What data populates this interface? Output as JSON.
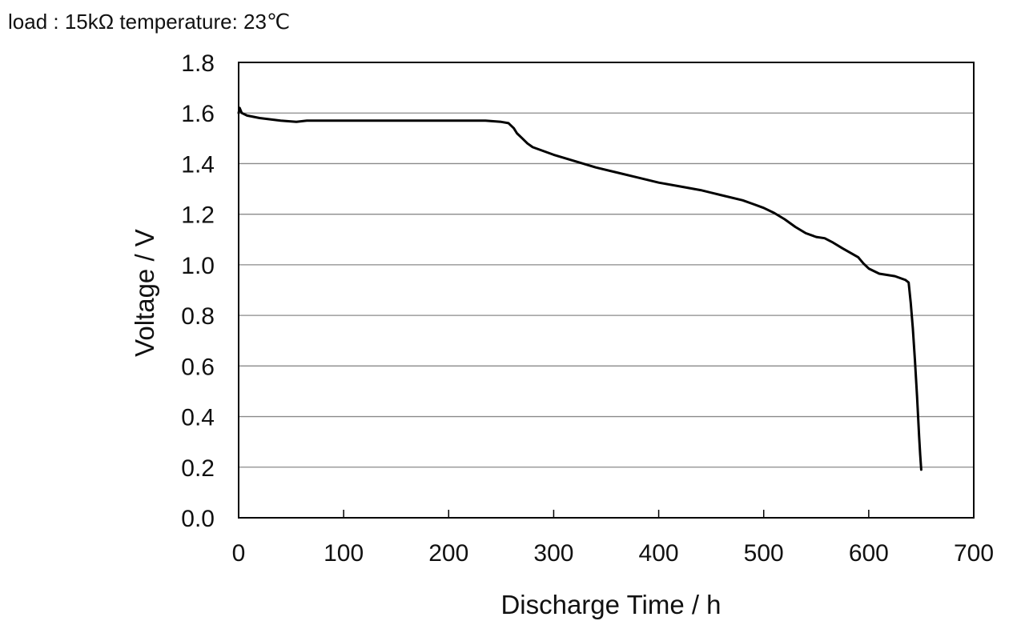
{
  "caption": "load : 15kΩ   temperature: 23℃",
  "chart_data": {
    "type": "line",
    "title": "",
    "xlabel": "Discharge Time  / h",
    "ylabel": "Voltage / V",
    "xlim": [
      0,
      700
    ],
    "ylim": [
      0.0,
      1.8
    ],
    "x_ticks": [
      "0",
      "100",
      "200",
      "300",
      "400",
      "500",
      "600",
      "700"
    ],
    "y_ticks": [
      "0.0",
      "0.2",
      "0.4",
      "0.6",
      "0.8",
      "1.0",
      "1.2",
      "1.4",
      "1.6",
      "1.8"
    ],
    "grid": "horizontal",
    "legend": "none",
    "line_color": "#000000",
    "series": [
      {
        "x": [
          0,
          1,
          3,
          8,
          20,
          40,
          55,
          65,
          100,
          150,
          200,
          235,
          250,
          257,
          262,
          265,
          270,
          275,
          280,
          290,
          300,
          320,
          340,
          360,
          380,
          400,
          420,
          440,
          460,
          480,
          490,
          500,
          510,
          520,
          530,
          540,
          550,
          558,
          565,
          575,
          590,
          595,
          600,
          610,
          625,
          635,
          638,
          640,
          642,
          644,
          646,
          648,
          649,
          650
        ],
        "y": [
          1.6,
          1.62,
          1.6,
          1.59,
          1.58,
          1.57,
          1.565,
          1.57,
          1.57,
          1.57,
          1.57,
          1.57,
          1.565,
          1.56,
          1.54,
          1.52,
          1.5,
          1.48,
          1.465,
          1.45,
          1.435,
          1.41,
          1.385,
          1.365,
          1.345,
          1.325,
          1.31,
          1.295,
          1.275,
          1.255,
          1.24,
          1.225,
          1.205,
          1.18,
          1.15,
          1.125,
          1.11,
          1.105,
          1.09,
          1.065,
          1.03,
          1.005,
          0.985,
          0.965,
          0.955,
          0.94,
          0.93,
          0.85,
          0.75,
          0.62,
          0.48,
          0.32,
          0.25,
          0.19
        ]
      }
    ]
  }
}
